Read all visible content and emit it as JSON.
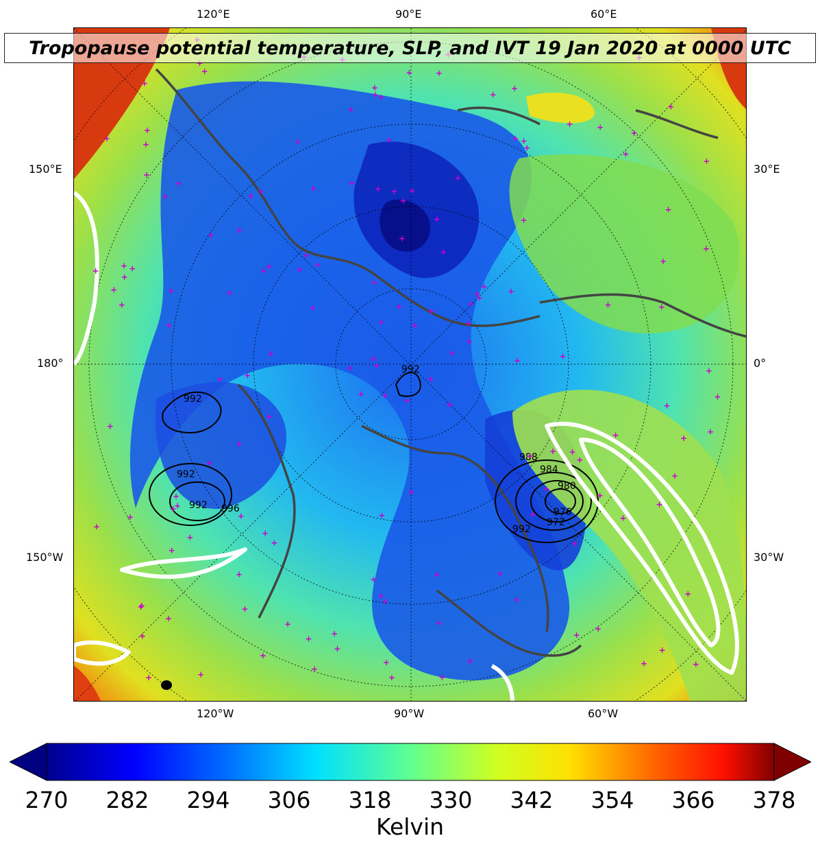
{
  "title": "Tropopause potential temperature, SLP, and IVT 19 Jan 2020 at 0000 UTC",
  "map": {
    "top_lon_labels": [
      "120°E",
      "90°E",
      "60°E"
    ],
    "bottom_lon_labels": [
      "120°W",
      "90°W",
      "60°W"
    ],
    "left_lon_labels": [
      "150°E",
      "180°",
      "150°W"
    ],
    "right_lon_labels": [
      "30°E",
      "0°",
      "30°W"
    ],
    "slp_contour_labels": [
      "992",
      "992",
      "992",
      "992",
      "996",
      "988",
      "984",
      "980",
      "976",
      "972",
      "992"
    ],
    "projection": "north-polar-stereographic",
    "colors": {
      "ocean_hot": "#c01000",
      "warm": "#e8e000",
      "mid": "#7ed957",
      "cool": "#1fd4e0",
      "cold": "#1060f0",
      "coldest": "#0a1ab0",
      "coastline": "#444444",
      "ivt": "#ffffff",
      "marker": "#cc00cc"
    }
  },
  "colorbar": {
    "label": "Kelvin",
    "min": 270,
    "max": 378,
    "ticks": [
      "270",
      "282",
      "294",
      "306",
      "318",
      "330",
      "342",
      "354",
      "366",
      "378"
    ],
    "colormap": "jet",
    "extend": "both"
  }
}
